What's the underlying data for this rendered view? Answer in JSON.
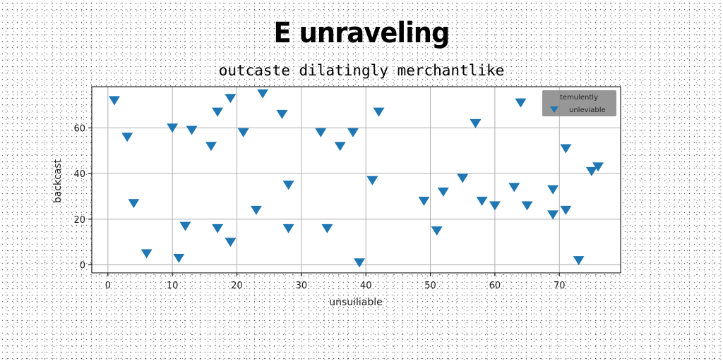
{
  "title": "E unraveling",
  "subtitle": "outcaste dilatingly merchantlike",
  "chart_data": {
    "type": "scatter",
    "xlabel": "unsuiliable",
    "ylabel": "backcast",
    "xlim": [
      -2.5,
      79.5
    ],
    "ylim": [
      -3.5,
      78
    ],
    "xticks": [
      0,
      10,
      20,
      30,
      40,
      50,
      60,
      70
    ],
    "yticks": [
      0,
      20,
      40,
      60
    ],
    "grid": true,
    "legend": {
      "placement": "top-right",
      "title": "temulently",
      "entries": [
        "unleviable"
      ]
    },
    "marker": "triangle-down",
    "color": "#1f77b4",
    "series": [
      {
        "name": "unleviable",
        "points": [
          [
            1,
            72
          ],
          [
            3,
            56
          ],
          [
            4,
            27
          ],
          [
            6,
            5
          ],
          [
            10,
            60
          ],
          [
            11,
            3
          ],
          [
            12,
            17
          ],
          [
            13,
            59
          ],
          [
            16,
            52
          ],
          [
            17,
            67
          ],
          [
            17,
            16
          ],
          [
            19,
            10
          ],
          [
            19,
            73
          ],
          [
            21,
            58
          ],
          [
            23,
            24
          ],
          [
            24,
            75
          ],
          [
            27,
            66
          ],
          [
            28,
            35
          ],
          [
            28,
            16
          ],
          [
            33,
            58
          ],
          [
            34,
            16
          ],
          [
            36,
            52
          ],
          [
            38,
            58
          ],
          [
            39,
            1
          ],
          [
            41,
            37
          ],
          [
            42,
            67
          ],
          [
            49,
            28
          ],
          [
            51,
            15
          ],
          [
            52,
            32
          ],
          [
            55,
            38
          ],
          [
            57,
            62
          ],
          [
            58,
            28
          ],
          [
            60,
            26
          ],
          [
            63,
            34
          ],
          [
            64,
            71
          ],
          [
            65,
            26
          ],
          [
            69,
            33
          ],
          [
            69,
            22
          ],
          [
            71,
            24
          ],
          [
            71,
            51
          ],
          [
            73,
            2
          ],
          [
            75,
            41
          ],
          [
            76,
            43
          ]
        ]
      }
    ]
  }
}
